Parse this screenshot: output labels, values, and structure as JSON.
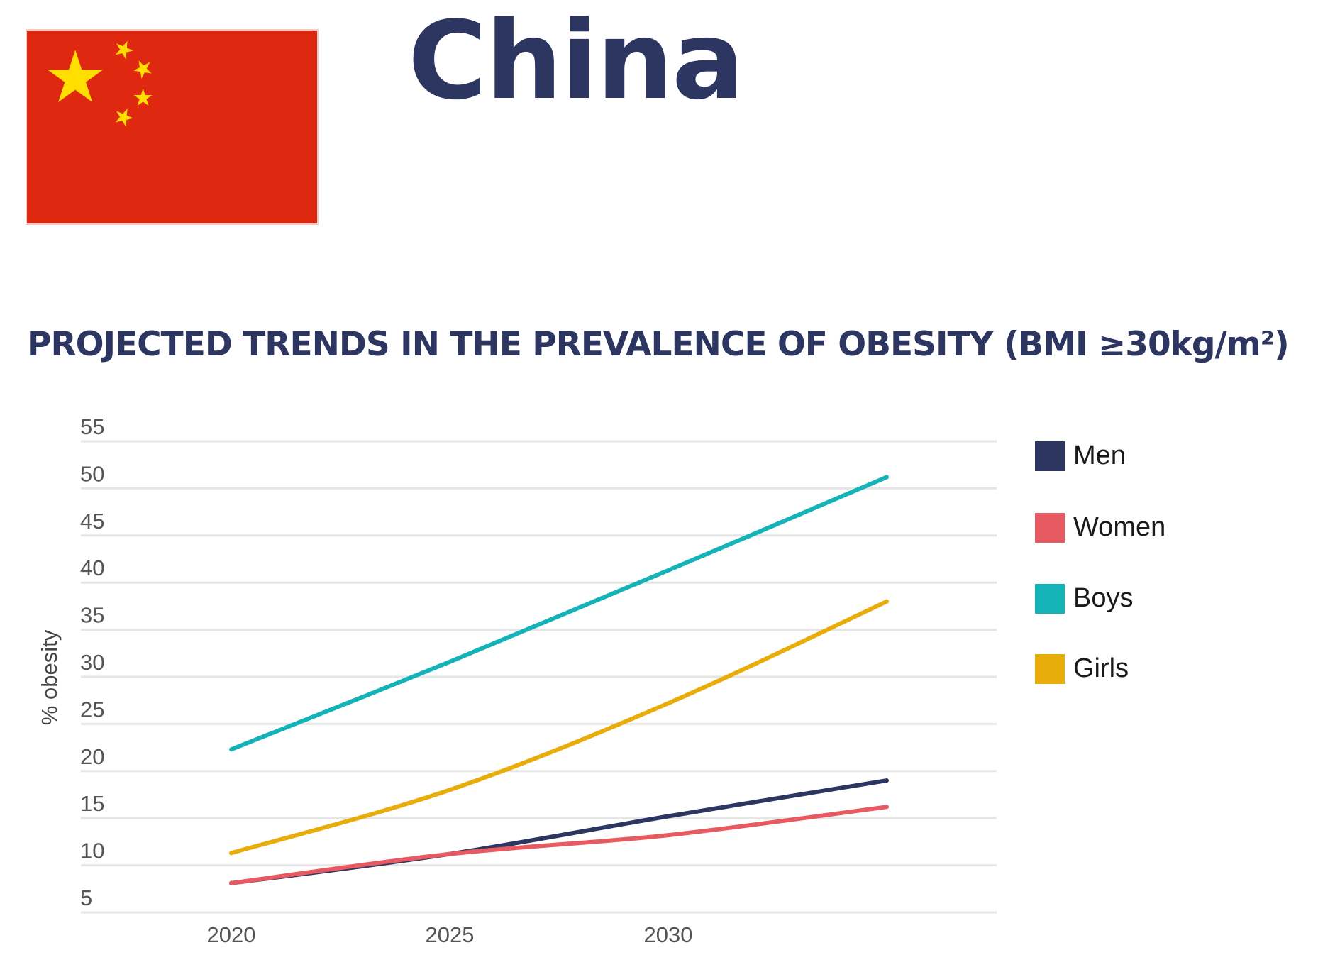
{
  "header": {
    "country": "China",
    "flag_icon": "china-flag-icon",
    "flag_colors": {
      "field": "#de2910",
      "stars": "#ffde00"
    }
  },
  "chart_data": {
    "type": "line",
    "title": "PROJECTED TRENDS IN THE PREVALENCE OF OBESITY (BMI ≥30kg/m²)",
    "xlabel": "",
    "ylabel": "% obesity",
    "x": [
      2020,
      2025,
      2030,
      2035
    ],
    "x_tick_labels": [
      "2020",
      "2025",
      "2030"
    ],
    "y_ticks": [
      5,
      10,
      15,
      20,
      25,
      30,
      35,
      40,
      45,
      50,
      55
    ],
    "ylim": [
      5,
      55
    ],
    "grid": true,
    "legend_position": "right",
    "series": [
      {
        "name": "Men",
        "color": "#2d3561",
        "values": [
          8.1,
          11.2,
          15.2,
          19.0
        ]
      },
      {
        "name": "Women",
        "color": "#e85a61",
        "values": [
          8.1,
          11.2,
          13.2,
          16.2
        ]
      },
      {
        "name": "Boys",
        "color": "#13b3b8",
        "values": [
          22.3,
          31.6,
          41.3,
          51.2
        ]
      },
      {
        "name": "Girls",
        "color": "#e8ad0a",
        "values": [
          11.3,
          18.0,
          27.2,
          38.0
        ]
      }
    ]
  }
}
